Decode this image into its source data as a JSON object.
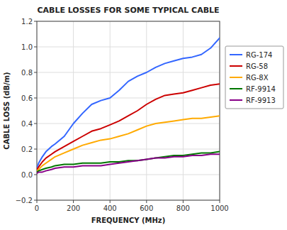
{
  "chart_data": {
    "type": "line",
    "title": "CABLE LOSSES FOR SOME TYPICAL CABLE",
    "xlabel": "FREQUENCY (MHz)",
    "ylabel": "CABLE LOSS (dB/m)",
    "x": [
      0,
      10,
      30,
      50,
      80,
      100,
      150,
      200,
      250,
      300,
      350,
      400,
      450,
      500,
      550,
      600,
      650,
      700,
      750,
      800,
      850,
      900,
      950,
      1000
    ],
    "series": [
      {
        "name": "RG-174",
        "color": "#3366FF",
        "values": [
          0.05,
          0.09,
          0.14,
          0.18,
          0.22,
          0.24,
          0.3,
          0.4,
          0.48,
          0.55,
          0.58,
          0.6,
          0.66,
          0.73,
          0.77,
          0.8,
          0.84,
          0.87,
          0.89,
          0.91,
          0.92,
          0.94,
          0.99,
          1.07
        ]
      },
      {
        "name": "RG-58",
        "color": "#CC0000",
        "values": [
          0.04,
          0.06,
          0.1,
          0.13,
          0.16,
          0.18,
          0.22,
          0.26,
          0.3,
          0.34,
          0.36,
          0.39,
          0.42,
          0.46,
          0.5,
          0.55,
          0.59,
          0.62,
          0.63,
          0.64,
          0.66,
          0.68,
          0.7,
          0.71
        ]
      },
      {
        "name": "RG-8X",
        "color": "#FFAA00",
        "values": [
          0.03,
          0.04,
          0.07,
          0.09,
          0.12,
          0.14,
          0.17,
          0.2,
          0.23,
          0.25,
          0.27,
          0.28,
          0.3,
          0.32,
          0.35,
          0.38,
          0.4,
          0.41,
          0.42,
          0.43,
          0.44,
          0.44,
          0.45,
          0.46
        ]
      },
      {
        "name": "RF-9914",
        "color": "#007700",
        "values": [
          0.02,
          0.03,
          0.04,
          0.05,
          0.06,
          0.07,
          0.08,
          0.08,
          0.09,
          0.09,
          0.09,
          0.1,
          0.1,
          0.11,
          0.11,
          0.12,
          0.13,
          0.14,
          0.15,
          0.15,
          0.16,
          0.17,
          0.17,
          0.18
        ]
      },
      {
        "name": "RF-9913",
        "color": "#880088",
        "values": [
          0.01,
          0.02,
          0.02,
          0.03,
          0.04,
          0.05,
          0.06,
          0.06,
          0.07,
          0.07,
          0.07,
          0.08,
          0.09,
          0.1,
          0.11,
          0.12,
          0.13,
          0.13,
          0.14,
          0.14,
          0.15,
          0.15,
          0.16,
          0.16
        ]
      }
    ],
    "xlim": [
      0,
      1000
    ],
    "ylim": [
      -0.2,
      1.2
    ],
    "xticks": [
      0,
      200,
      400,
      600,
      800,
      1000
    ],
    "yticks": [
      {
        "value": -0.2,
        "label": "−0.2"
      },
      {
        "value": 0.0,
        "label": "0.0"
      },
      0.2,
      0.4,
      0.6,
      0.8,
      {
        "value": 1.0,
        "label": "1.0"
      },
      1.2
    ],
    "grid": true,
    "legend": "right"
  }
}
